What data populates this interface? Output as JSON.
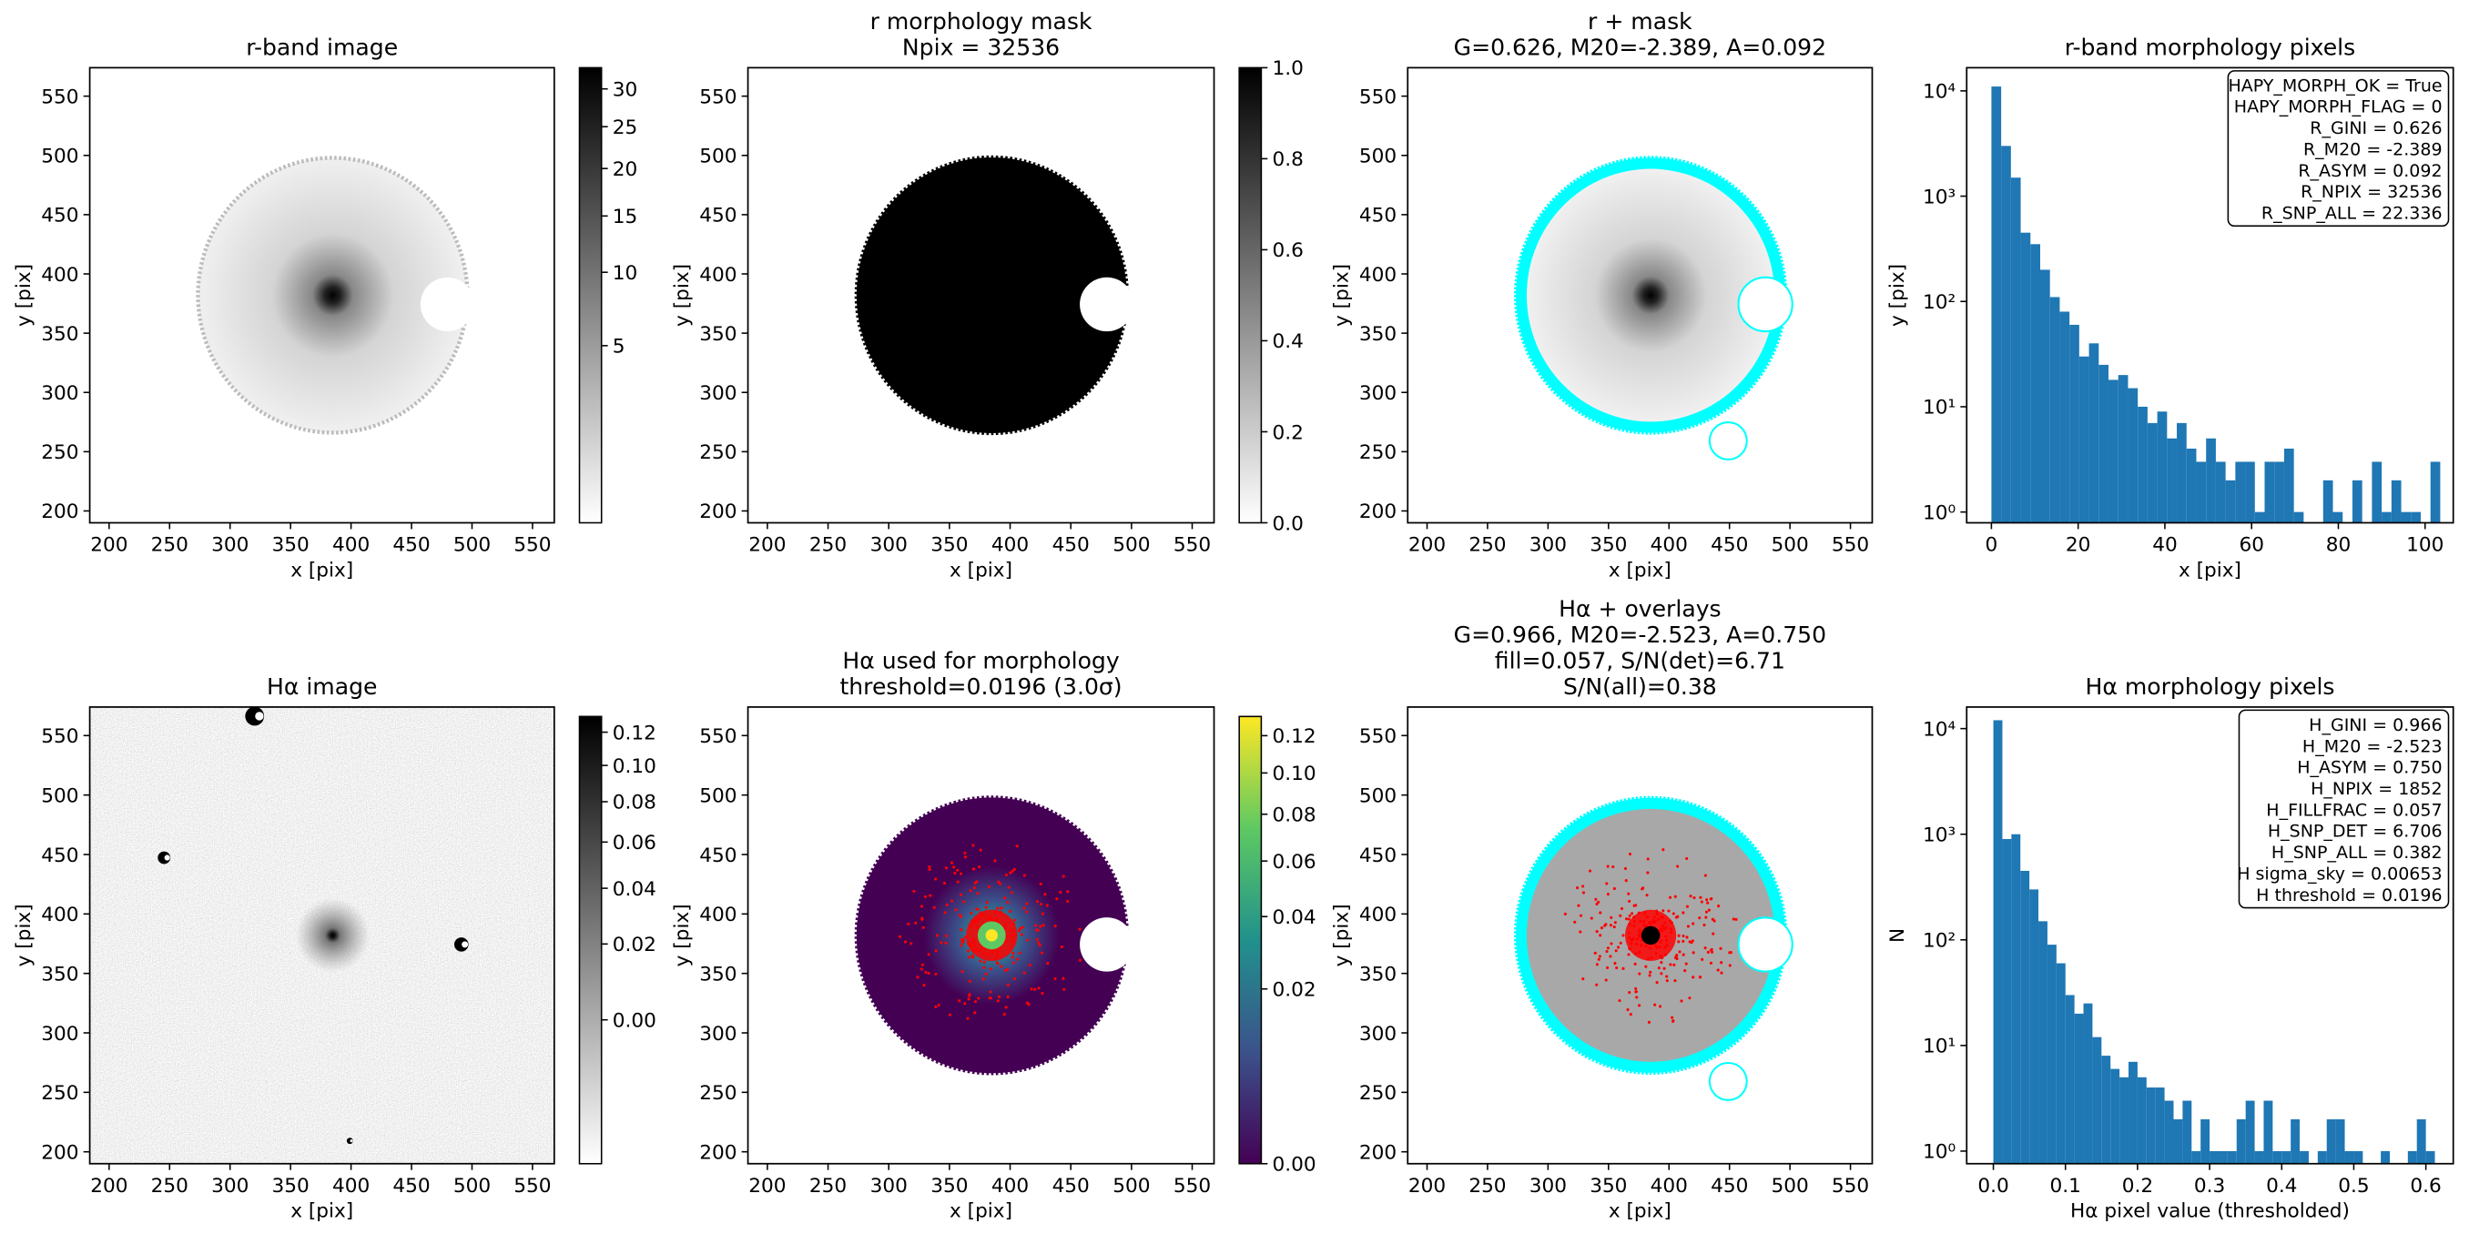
{
  "chart_data": [
    {
      "type": "image",
      "cmap": "gray_r",
      "title": [
        "r-band image"
      ],
      "xlabel": "x [pix]",
      "ylabel": "y [pix]",
      "xlim": [
        184,
        568
      ],
      "ylim": [
        190,
        574
      ],
      "xticks": [
        200,
        250,
        300,
        350,
        400,
        450,
        500,
        550
      ],
      "yticks": [
        200,
        250,
        300,
        350,
        400,
        450,
        500,
        550
      ],
      "colorbar": {
        "stretch": "sqrt",
        "clim": [
          0,
          33
        ],
        "ticks": [
          5,
          10,
          15,
          20,
          25,
          30
        ]
      }
    },
    {
      "type": "image",
      "cmap": "gray_r",
      "title": [
        "r morphology mask",
        "Npix = 32536"
      ],
      "xlabel": "x [pix]",
      "ylabel": "y [pix]",
      "xlim": [
        184,
        568
      ],
      "ylim": [
        190,
        574
      ],
      "xticks": [
        200,
        250,
        300,
        350,
        400,
        450,
        500,
        550
      ],
      "yticks": [
        200,
        250,
        300,
        350,
        400,
        450,
        500,
        550
      ],
      "colorbar": {
        "stretch": "linear",
        "clim": [
          0,
          1
        ],
        "ticks": [
          {
            "value": 0,
            "label": "0.0"
          },
          0.2,
          0.4,
          0.6,
          0.8,
          {
            "value": 1,
            "label": "1.0"
          }
        ]
      }
    },
    {
      "type": "image",
      "cmap": "gray_r",
      "title": [
        "r + mask",
        "G=0.626, M20=-2.389, A=0.092"
      ],
      "xlabel": "x [pix]",
      "ylabel": "y [pix]",
      "xlim": [
        184,
        568
      ],
      "ylim": [
        190,
        574
      ],
      "xticks": [
        200,
        250,
        300,
        350,
        400,
        450,
        500,
        550
      ],
      "yticks": [
        200,
        250,
        300,
        350,
        400,
        450,
        500,
        550
      ]
    },
    {
      "type": "histogram",
      "color": "#1f77b4",
      "yscale": "log",
      "title": [
        "r-band morphology pixels"
      ],
      "xlabel": "x [pix]",
      "ylabel": "y [pix]",
      "xlim": [
        -5.7,
        106.5
      ],
      "ylim": [
        0.79,
        16600
      ],
      "xticks": [
        0,
        20,
        40,
        60,
        80,
        100
      ],
      "yticks": [
        {
          "value": 1,
          "label": "10⁰"
        },
        {
          "value": 10,
          "label": "10¹"
        },
        {
          "value": 100,
          "label": "10²"
        },
        {
          "value": 1000,
          "label": "10³"
        },
        {
          "value": 10000,
          "label": "10⁴"
        }
      ],
      "bins": [
        0,
        2.25,
        4.5,
        6.75,
        9,
        11.25,
        13.5,
        15.75,
        18,
        20.25,
        22.5,
        24.75,
        27,
        29.25,
        31.5,
        33.75,
        36,
        38.25,
        40.5,
        42.75,
        45,
        47.25,
        49.5,
        51.75,
        54,
        56.25,
        58.5,
        60.75,
        63,
        65.25,
        67.5,
        69.75,
        72,
        74.25,
        76.5,
        78.75,
        81,
        83.25,
        85.5,
        87.75,
        90,
        92.25,
        94.5,
        96.75,
        99,
        101.25,
        103.5
      ],
      "values": [
        11000,
        3000,
        1500,
        450,
        350,
        200,
        110,
        80,
        60,
        30,
        40,
        25,
        18,
        20,
        15,
        10,
        7,
        9,
        5,
        7,
        4,
        3,
        5,
        3,
        2,
        3,
        3,
        1,
        3,
        3,
        4,
        1,
        0,
        0,
        2,
        1,
        0,
        2,
        0,
        3,
        1,
        2,
        1,
        1,
        0,
        3
      ],
      "annotation_lines": [
        "HAPY_MORPH_OK = True",
        "HAPY_MORPH_FLAG = 0",
        "R_GINI = 0.626",
        "R_M20 = -2.389",
        "R_ASYM = 0.092",
        "R_NPIX = 32536",
        "R_SNP_ALL = 22.336"
      ]
    },
    {
      "type": "image",
      "cmap": "gray_r",
      "title": [
        "Hα image"
      ],
      "xlabel": "x [pix]",
      "ylabel": "y [pix]",
      "xlim": [
        184,
        568
      ],
      "ylim": [
        190,
        574
      ],
      "xticks": [
        200,
        250,
        300,
        350,
        400,
        450,
        500,
        550
      ],
      "yticks": [
        200,
        250,
        300,
        350,
        400,
        450,
        500,
        550
      ],
      "colorbar": {
        "stretch": "sqrt",
        "clim": [
          -0.015,
          0.13
        ],
        "ticks": [
          {
            "value": 0,
            "label": "0.00"
          },
          0.02,
          0.04,
          0.06,
          0.08,
          {
            "value": 0.1,
            "label": "0.10"
          },
          0.12
        ]
      }
    },
    {
      "type": "image",
      "cmap": "viridis",
      "title": [
        "Hα used for morphology",
        "threshold=0.0196 (3.0σ)"
      ],
      "xlabel": "x [pix]",
      "ylabel": "y [pix]",
      "xlim": [
        184,
        568
      ],
      "ylim": [
        190,
        574
      ],
      "xticks": [
        200,
        250,
        300,
        350,
        400,
        450,
        500,
        550
      ],
      "yticks": [
        200,
        250,
        300,
        350,
        400,
        450,
        500,
        550
      ],
      "colorbar": {
        "stretch": "sqrt",
        "clim": [
          0,
          0.131
        ],
        "ticks": [
          {
            "value": 0,
            "label": "0.00"
          },
          0.02,
          0.04,
          0.06,
          0.08,
          {
            "value": 0.1,
            "label": "0.10"
          },
          0.12
        ]
      }
    },
    {
      "type": "image",
      "cmap": "gray_r",
      "title": [
        "Hα + overlays",
        "G=0.966, M20=-2.523, A=0.750",
        "fill=0.057, S/N(det)=6.71",
        "S/N(all)=0.38"
      ],
      "xlabel": "x [pix]",
      "ylabel": "y [pix]",
      "xlim": [
        184,
        568
      ],
      "ylim": [
        190,
        574
      ],
      "xticks": [
        200,
        250,
        300,
        350,
        400,
        450,
        500,
        550
      ],
      "yticks": [
        200,
        250,
        300,
        350,
        400,
        450,
        500,
        550
      ]
    },
    {
      "type": "histogram",
      "color": "#1f77b4",
      "yscale": "log",
      "title": [
        "Hα morphology pixels"
      ],
      "xlabel": "Hα pixel value (thresholded)",
      "ylabel": "N",
      "xlim": [
        -0.037,
        0.638
      ],
      "ylim": [
        0.76,
        16000
      ],
      "xticks": [
        {
          "value": 0,
          "label": "0.0"
        },
        0.1,
        0.2,
        0.3,
        0.4,
        0.5,
        0.6
      ],
      "yticks": [
        {
          "value": 1,
          "label": "10⁰"
        },
        {
          "value": 10,
          "label": "10¹"
        },
        {
          "value": 100,
          "label": "10²"
        },
        {
          "value": 1000,
          "label": "10³"
        },
        {
          "value": 10000,
          "label": "10⁴"
        }
      ],
      "bins": [
        0,
        0.0125,
        0.025,
        0.0375,
        0.05,
        0.0625,
        0.075,
        0.0875,
        0.1,
        0.1125,
        0.125,
        0.1375,
        0.15,
        0.1625,
        0.175,
        0.1875,
        0.2,
        0.2125,
        0.225,
        0.2375,
        0.25,
        0.2625,
        0.275,
        0.2875,
        0.3,
        0.3125,
        0.325,
        0.3375,
        0.35,
        0.3625,
        0.375,
        0.3875,
        0.4,
        0.4125,
        0.425,
        0.4375,
        0.45,
        0.4625,
        0.475,
        0.4875,
        0.5,
        0.5125,
        0.525,
        0.5375,
        0.55,
        0.5625,
        0.575,
        0.5875,
        0.6,
        0.6125
      ],
      "values": [
        12000,
        900,
        1000,
        450,
        300,
        150,
        90,
        60,
        30,
        20,
        25,
        12,
        8,
        6,
        5,
        7,
        5,
        4,
        4,
        3,
        2,
        3,
        1,
        2,
        1,
        1,
        1,
        2,
        3,
        1,
        3,
        1,
        1,
        2,
        1,
        0,
        1,
        2,
        2,
        1,
        1,
        0,
        0,
        1,
        0,
        0,
        1,
        2,
        1
      ],
      "annotation_lines": [
        "H_GINI = 0.966",
        "H_M20 = -2.523",
        "H_ASYM = 0.750",
        "H_NPIX = 1852",
        "H_FILLFRAC = 0.057",
        "H_SNP_DET = 6.706",
        "H_SNP_ALL = 0.382",
        "H sigma_sky = 0.00653",
        "H threshold = 0.0196"
      ]
    }
  ]
}
